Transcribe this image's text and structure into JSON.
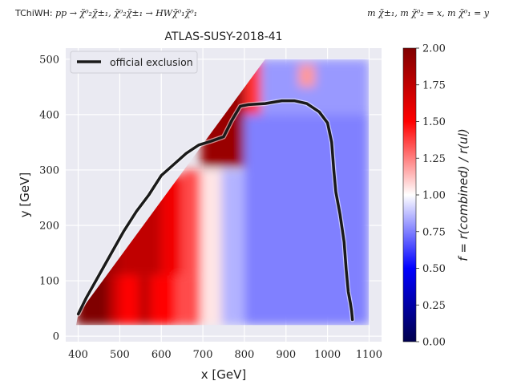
{
  "header": {
    "left_label": "TChiWH:",
    "left_math": "pp → χ̃⁰₂χ̃±₁, χ̃⁰₂χ̃±₁ → HWχ̃⁰₁χ̃⁰₁",
    "right_math": "m χ̃±₁, m χ̃⁰₂ = x, m χ̃⁰₁ = y"
  },
  "chart_data": {
    "type": "heatmap",
    "title": "ATLAS-SUSY-2018-41",
    "xlabel": "x [GeV]",
    "ylabel": "y [GeV]",
    "xlim": [
      370,
      1130
    ],
    "ylim": [
      -10,
      520
    ],
    "xticks": [
      400,
      500,
      600,
      700,
      800,
      900,
      1000,
      1100
    ],
    "yticks": [
      0,
      100,
      200,
      300,
      400,
      500
    ],
    "grid": true,
    "colormap": "seismic",
    "colorbar": {
      "label": "f = r(combined) / r(ul)",
      "range": [
        0.0,
        2.0
      ],
      "ticks": [
        "0.00",
        "0.25",
        "0.50",
        "0.75",
        "1.00",
        "1.25",
        "1.50",
        "1.75",
        "2.00"
      ]
    },
    "legend": {
      "position": "top-left",
      "entries": [
        "official exclusion"
      ]
    },
    "regions": [
      {
        "x": [
          395,
          475
        ],
        "y": [
          20,
          110
        ],
        "f": 2.0
      },
      {
        "x": [
          475,
          500
        ],
        "y": [
          20,
          110
        ],
        "f": 1.7
      },
      {
        "x": [
          500,
          545
        ],
        "y": [
          20,
          110
        ],
        "f": 1.5
      },
      {
        "x": [
          545,
          575
        ],
        "y": [
          20,
          110
        ],
        "f": 1.75
      },
      {
        "x": [
          575,
          635
        ],
        "y": [
          20,
          110
        ],
        "f": 1.5
      },
      {
        "x": [
          635,
          695
        ],
        "y": [
          20,
          110
        ],
        "f": 1.35
      },
      {
        "x": [
          395,
          500
        ],
        "y": [
          110,
          210
        ],
        "f": 1.85
      },
      {
        "x": [
          500,
          600
        ],
        "y": [
          110,
          290
        ],
        "f": 1.75
      },
      {
        "x": [
          600,
          650
        ],
        "y": [
          110,
          290
        ],
        "f": 1.55
      },
      {
        "x": [
          650,
          695
        ],
        "y": [
          110,
          300
        ],
        "f": 1.35
      },
      {
        "x": [
          695,
          800
        ],
        "y": [
          305,
          500
        ],
        "f": 1.9
      },
      {
        "x": [
          800,
          840
        ],
        "y": [
          400,
          500
        ],
        "f": 1.4
      },
      {
        "x": [
          695,
          745
        ],
        "y": [
          20,
          300
        ],
        "f": 1.05
      },
      {
        "x": [
          745,
          800
        ],
        "y": [
          20,
          300
        ],
        "f": 0.85
      },
      {
        "x": [
          800,
          1100
        ],
        "y": [
          20,
          400
        ],
        "f": 0.75
      },
      {
        "x": [
          840,
          1100
        ],
        "y": [
          400,
          500
        ],
        "f": 0.8
      },
      {
        "x": [
          930,
          970
        ],
        "y": [
          450,
          490
        ],
        "f": 1.2
      }
    ],
    "series": [
      {
        "name": "official exclusion",
        "x": [
          400,
          420,
          450,
          480,
          510,
          540,
          570,
          600,
          630,
          660,
          690,
          720,
          750,
          770,
          790,
          810,
          850,
          890,
          920,
          950,
          980,
          1000,
          1010,
          1015,
          1020,
          1030,
          1040,
          1045,
          1050,
          1055,
          1058,
          1060
        ],
        "y": [
          40,
          70,
          110,
          150,
          190,
          225,
          255,
          290,
          310,
          330,
          345,
          352,
          360,
          390,
          415,
          418,
          420,
          425,
          425,
          420,
          405,
          385,
          350,
          300,
          260,
          220,
          170,
          120,
          80,
          60,
          45,
          30
        ]
      }
    ]
  }
}
